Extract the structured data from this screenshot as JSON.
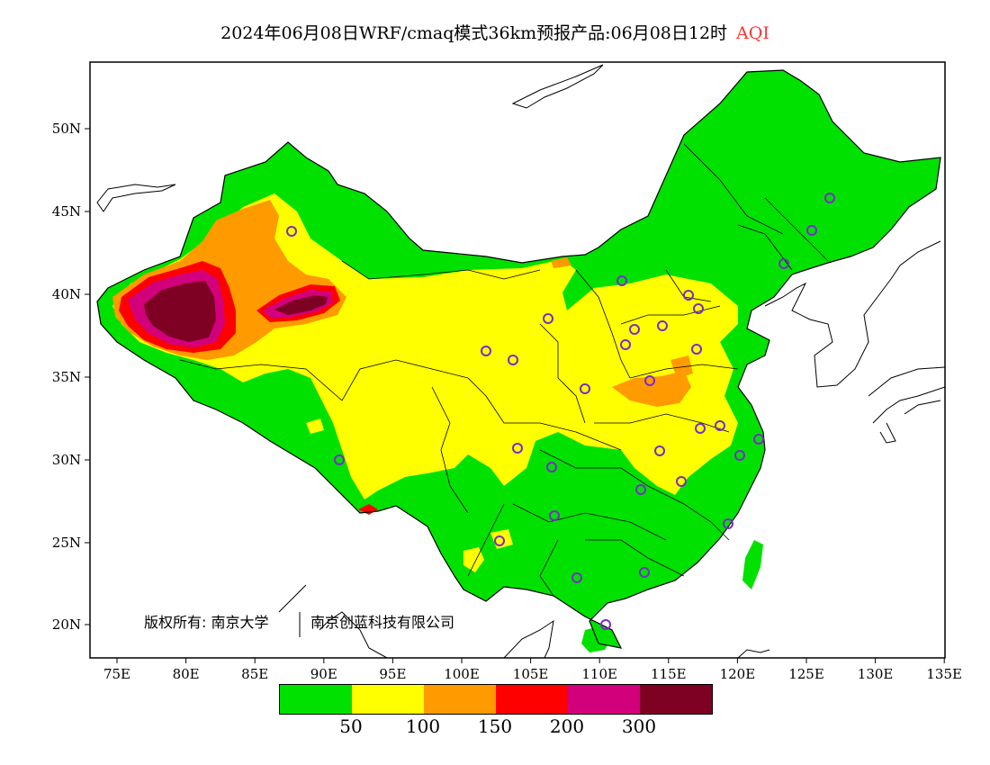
{
  "title": {
    "date_model": "2024年06月08日WRF/cmaq模式36km预报产品:",
    "valid": "06月08日12时",
    "variable": "AQI",
    "variable_color": "#ff3333"
  },
  "axes": {
    "x_ticks": [
      "75E",
      "80E",
      "85E",
      "90E",
      "95E",
      "100E",
      "105E",
      "110E",
      "115E",
      "120E",
      "125E",
      "130E",
      "135E"
    ],
    "y_ticks": [
      "50N",
      "45N",
      "40N",
      "35N",
      "30N",
      "25N",
      "20N"
    ]
  },
  "copyright": {
    "part1": "版权所有: 南京大学",
    "part2": "南京创蓝科技有限公司"
  },
  "legend": {
    "colors": [
      "#00e100",
      "#ffff00",
      "#ff9a00",
      "#ff0000",
      "#d2007a",
      "#7e0023"
    ],
    "labels": [
      "50",
      "100",
      "150",
      "200",
      "300"
    ]
  },
  "colors": {
    "good": "#00e100",
    "moderate": "#ffff00",
    "usg": "#ff9a00",
    "unhealthy": "#ff0000",
    "very_unhealthy": "#d2007a",
    "hazardous": "#7e0023",
    "station_marker": "#7a2cc8"
  },
  "map_features": [
    "coastlines",
    "national-border",
    "provincial-borders",
    "station-markers"
  ]
}
